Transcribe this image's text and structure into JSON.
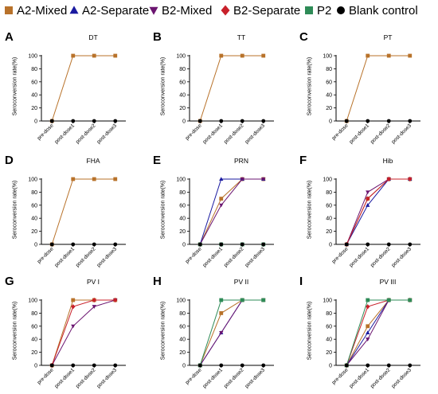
{
  "legend": [
    {
      "name": "A2-Mixed",
      "color": "#B8722A",
      "marker": "square"
    },
    {
      "name": "A2-Separate",
      "color": "#1A1AA0",
      "marker": "triangle-up"
    },
    {
      "name": "B2-Mixed",
      "color": "#6B1570",
      "marker": "triangle-down"
    },
    {
      "name": "B2-Separate",
      "color": "#C8202A",
      "marker": "diamond"
    },
    {
      "name": "P2",
      "color": "#2E8B57",
      "marker": "square"
    },
    {
      "name": "Blank control",
      "color": "#000000",
      "marker": "circle"
    }
  ],
  "chart_data": [
    {
      "letter": "A",
      "title": "DT",
      "type": "line",
      "ylabel": "Seroconversion rate(%)",
      "ylim": [
        0,
        100
      ],
      "yticks": [
        0,
        20,
        40,
        60,
        80,
        100
      ],
      "categories": [
        "pre-dose",
        "post-dose1",
        "post-dose2",
        "post-dose3"
      ],
      "series": [
        {
          "name": "A2-Mixed",
          "values": [
            0,
            100,
            100,
            100
          ]
        },
        {
          "name": "Blank control",
          "values": [
            0,
            0,
            0,
            0
          ]
        }
      ]
    },
    {
      "letter": "B",
      "title": "TT",
      "type": "line",
      "ylabel": "Seroconversion rate(%)",
      "ylim": [
        0,
        100
      ],
      "yticks": [
        0,
        20,
        40,
        60,
        80,
        100
      ],
      "categories": [
        "pre-dose",
        "post-dose1",
        "post-dose2",
        "post-dose3"
      ],
      "series": [
        {
          "name": "A2-Mixed",
          "values": [
            0,
            100,
            100,
            100
          ]
        },
        {
          "name": "Blank control",
          "values": [
            0,
            0,
            0,
            0
          ]
        }
      ]
    },
    {
      "letter": "C",
      "title": "PT",
      "type": "line",
      "ylabel": "Seroconversion rate(%)",
      "ylim": [
        0,
        100
      ],
      "yticks": [
        0,
        20,
        40,
        60,
        80,
        100
      ],
      "categories": [
        "pre-dose",
        "post-dose1",
        "post-dose2",
        "post-dose3"
      ],
      "series": [
        {
          "name": "A2-Mixed",
          "values": [
            0,
            100,
            100,
            100
          ]
        },
        {
          "name": "Blank control",
          "values": [
            0,
            0,
            0,
            0
          ]
        }
      ]
    },
    {
      "letter": "D",
      "title": "FHA",
      "type": "line",
      "ylabel": "Seroconversion rate(%)",
      "ylim": [
        0,
        100
      ],
      "yticks": [
        0,
        20,
        40,
        60,
        80,
        100
      ],
      "categories": [
        "pre-dose",
        "post-dose1",
        "post-dose2",
        "post-dose3"
      ],
      "series": [
        {
          "name": "A2-Mixed",
          "values": [
            0,
            100,
            100,
            100
          ]
        },
        {
          "name": "Blank control",
          "values": [
            0,
            0,
            0,
            0
          ]
        }
      ]
    },
    {
      "letter": "E",
      "title": "PRN",
      "type": "line",
      "ylabel": "Seroconversion rate(%)",
      "ylim": [
        0,
        100
      ],
      "yticks": [
        0,
        20,
        40,
        60,
        80,
        100
      ],
      "categories": [
        "pre-dose",
        "post-dose1",
        "post-dose2",
        "post-dose3"
      ],
      "series": [
        {
          "name": "A2-Mixed",
          "values": [
            0,
            70,
            100,
            100
          ]
        },
        {
          "name": "A2-Separate",
          "values": [
            0,
            100,
            100,
            100
          ]
        },
        {
          "name": "B2-Mixed",
          "values": [
            0,
            60,
            100,
            100
          ]
        },
        {
          "name": "P2",
          "values": [
            0,
            0,
            0,
            0
          ]
        },
        {
          "name": "Blank control",
          "values": [
            0,
            0,
            0,
            0
          ]
        }
      ]
    },
    {
      "letter": "F",
      "title": "Hib",
      "type": "line",
      "ylabel": "Seroconversion rate(%)",
      "ylim": [
        0,
        100
      ],
      "yticks": [
        0,
        20,
        40,
        60,
        80,
        100
      ],
      "categories": [
        "pre-dose",
        "post-dose1",
        "post-dose2",
        "post-dose3"
      ],
      "series": [
        {
          "name": "A2-Mixed",
          "values": [
            0,
            70,
            100,
            100
          ]
        },
        {
          "name": "A2-Separate",
          "values": [
            0,
            60,
            100,
            100
          ]
        },
        {
          "name": "B2-Mixed",
          "values": [
            0,
            80,
            100,
            100
          ]
        },
        {
          "name": "B2-Separate",
          "values": [
            0,
            70,
            100,
            100
          ]
        },
        {
          "name": "Blank control",
          "values": [
            0,
            0,
            0,
            0
          ]
        }
      ]
    },
    {
      "letter": "G",
      "title": "PV I",
      "type": "line",
      "ylabel": "Seroconversion rate(%)",
      "ylim": [
        0,
        100
      ],
      "yticks": [
        0,
        20,
        40,
        60,
        80,
        100
      ],
      "categories": [
        "pre-dose",
        "post-dose1",
        "post-dose2",
        "post-dose3"
      ],
      "series": [
        {
          "name": "A2-Mixed",
          "values": [
            0,
            100,
            100,
            100
          ]
        },
        {
          "name": "B2-Mixed",
          "values": [
            0,
            60,
            90,
            100
          ]
        },
        {
          "name": "B2-Separate",
          "values": [
            0,
            90,
            100,
            100
          ]
        },
        {
          "name": "Blank control",
          "values": [
            0,
            0,
            0,
            0
          ]
        }
      ]
    },
    {
      "letter": "H",
      "title": "PV II",
      "type": "line",
      "ylabel": "Seroconversion rate(%)",
      "ylim": [
        0,
        100
      ],
      "yticks": [
        0,
        20,
        40,
        60,
        80,
        100
      ],
      "categories": [
        "pre-dose",
        "post-dose1",
        "post-dose2",
        "post-dose3"
      ],
      "series": [
        {
          "name": "A2-Mixed",
          "values": [
            0,
            80,
            100,
            100
          ]
        },
        {
          "name": "A2-Separate",
          "values": [
            0,
            50,
            100,
            100
          ]
        },
        {
          "name": "B2-Mixed",
          "values": [
            0,
            50,
            100,
            100
          ]
        },
        {
          "name": "P2",
          "values": [
            0,
            100,
            100,
            100
          ]
        },
        {
          "name": "Blank control",
          "values": [
            0,
            0,
            0,
            0
          ]
        }
      ]
    },
    {
      "letter": "I",
      "title": "PV III",
      "type": "line",
      "ylabel": "Seroconversion rate(%)",
      "ylim": [
        0,
        100
      ],
      "yticks": [
        0,
        20,
        40,
        60,
        80,
        100
      ],
      "categories": [
        "pre-dose",
        "post-dose1",
        "post-dose2",
        "post-dose3"
      ],
      "series": [
        {
          "name": "A2-Mixed",
          "values": [
            0,
            60,
            100,
            100
          ]
        },
        {
          "name": "A2-Separate",
          "values": [
            0,
            50,
            100,
            100
          ]
        },
        {
          "name": "B2-Mixed",
          "values": [
            0,
            40,
            100,
            100
          ]
        },
        {
          "name": "B2-Separate",
          "values": [
            0,
            90,
            100,
            100
          ]
        },
        {
          "name": "P2",
          "values": [
            0,
            100,
            100,
            100
          ]
        },
        {
          "name": "Blank control",
          "values": [
            0,
            0,
            0,
            0
          ]
        }
      ]
    }
  ]
}
